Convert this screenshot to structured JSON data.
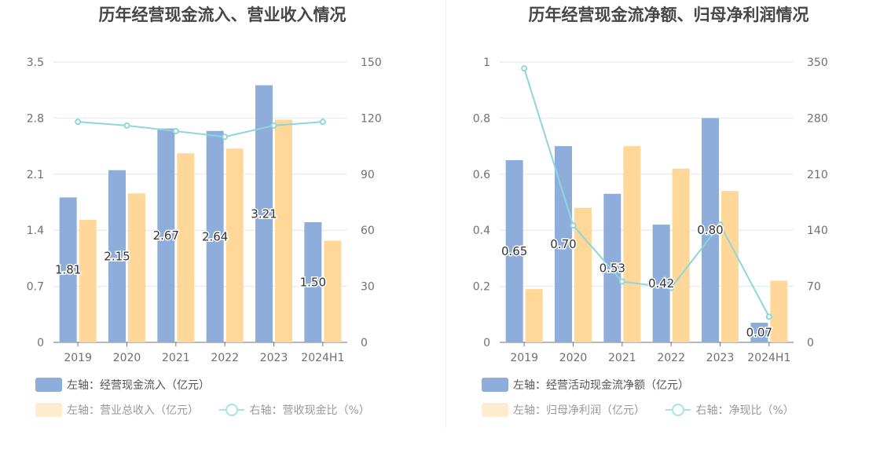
{
  "chart_data": [
    {
      "type": "bar",
      "title": "历年经营现金流入、营业收入情况",
      "categories": [
        "2019",
        "2020",
        "2021",
        "2022",
        "2023",
        "2024H1"
      ],
      "left_axis": {
        "min": 0,
        "max": 3.5,
        "ticks": [
          "0",
          "0.7",
          "1.4",
          "2.1",
          "2.8",
          "3.5"
        ]
      },
      "right_axis": {
        "min": 0,
        "max": 150,
        "ticks": [
          "0",
          "30",
          "60",
          "90",
          "120",
          "150"
        ]
      },
      "series": [
        {
          "name": "左轴：经营现金流入（亿元）",
          "kind": "bar",
          "axis": "left",
          "color": "#8eaddb",
          "values": [
            1.81,
            2.15,
            2.67,
            2.64,
            3.21,
            1.5
          ],
          "labels": [
            "1.81",
            "2.15",
            "2.67",
            "2.64",
            "3.21",
            "1.50"
          ]
        },
        {
          "name": "左轴：营业总收入（亿元）",
          "kind": "bar",
          "axis": "left",
          "color": "#ffd899",
          "values": [
            1.53,
            1.86,
            2.36,
            2.42,
            2.78,
            1.27
          ]
        },
        {
          "name": "右轴：营收现金比（%）",
          "kind": "line",
          "axis": "right",
          "color": "#8ed5dc",
          "values": [
            118,
            116,
            113,
            110,
            116,
            118
          ]
        }
      ],
      "legend_position": "bottom-left",
      "grid": true
    },
    {
      "type": "bar",
      "title": "历年经营现金流净额、归母净利润情况",
      "categories": [
        "2019",
        "2020",
        "2021",
        "2022",
        "2023",
        "2024H1"
      ],
      "left_axis": {
        "min": 0,
        "max": 1,
        "ticks": [
          "0",
          "0.2",
          "0.4",
          "0.6",
          "0.8",
          "1"
        ]
      },
      "right_axis": {
        "min": 0,
        "max": 350,
        "ticks": [
          "0",
          "70",
          "140",
          "210",
          "280",
          "350"
        ]
      },
      "series": [
        {
          "name": "左轴：经营活动现金流净额（亿元）",
          "kind": "bar",
          "axis": "left",
          "color": "#8eaddb",
          "values": [
            0.65,
            0.7,
            0.53,
            0.42,
            0.8,
            0.07
          ],
          "labels": [
            "0.65",
            "0.70",
            "0.53",
            "0.42",
            "0.80",
            "0.07"
          ]
        },
        {
          "name": "左轴：归母净利润（亿元）",
          "kind": "bar",
          "axis": "left",
          "color": "#ffd899",
          "values": [
            0.19,
            0.48,
            0.7,
            0.62,
            0.54,
            0.22
          ]
        },
        {
          "name": "右轴：净现比（%）",
          "kind": "line",
          "axis": "right",
          "color": "#8ed5dc",
          "values": [
            342,
            146,
            76,
            68,
            147,
            32
          ]
        }
      ],
      "legend_position": "bottom-left",
      "grid": true
    }
  ]
}
